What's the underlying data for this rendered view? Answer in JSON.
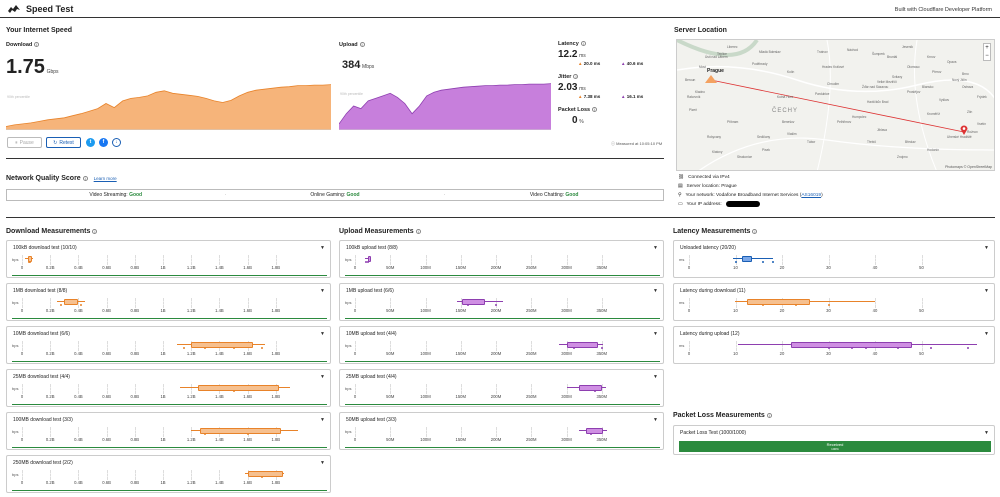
{
  "header": {
    "title": "Speed Test",
    "built_with": "Built with Cloudflare Developer Platform"
  },
  "internet_speed": {
    "title": "Your Internet Speed",
    "download": {
      "label": "Download",
      "value": "1.75",
      "unit": "Gbps",
      "percentile": "90th percentile"
    },
    "upload": {
      "label": "Upload",
      "value": "384",
      "unit": "Mbps",
      "percentile": "90th percentile"
    },
    "latency": {
      "label": "Latency",
      "value": "12.2",
      "unit": "ms",
      "down": "20.0 ms",
      "up": "40.6 ms"
    },
    "jitter": {
      "label": "Jitter",
      "value": "2.03",
      "unit": "ms",
      "down": "7.38 ms",
      "up": "16.1 ms"
    },
    "packet_loss": {
      "label": "Packet Loss",
      "value": "0",
      "unit": "%"
    },
    "measured_at": "Measured at 10:05:10 PM",
    "buttons": {
      "pause": "Pause",
      "retest": "Retest"
    }
  },
  "network_quality": {
    "title": "Network Quality Score",
    "learn_more": "Learn more",
    "items": [
      {
        "label": "Video Streaming:",
        "value": "Good"
      },
      {
        "label": "Online Gaming:",
        "value": "Good"
      },
      {
        "label": "Video Chatting:",
        "value": "Good"
      }
    ]
  },
  "server_location": {
    "title": "Server Location",
    "map": {
      "attribution": "Photomaps © OpenStreetMap",
      "zoom_in": "+",
      "zoom_out": "−",
      "labels": [
        "Prague",
        "ČECHY",
        "Liberec",
        "Ústí nad Labem",
        "Hradec Králové",
        "Plzeň",
        "Pardubice",
        "Kladno",
        "Mladá Boleslav",
        "Havlíčkův Brod",
        "Jihlava",
        "Tábor",
        "Písek",
        "Brno",
        "Znojmo",
        "Třebíč",
        "Kolín",
        "Poděbrady",
        "Chrudim",
        "Příbram",
        "Beroun",
        "Rakovník",
        "Teplice",
        "Most",
        "Kutná Hora",
        "Náchod",
        "Trutnov",
        "Svitavy",
        "Blansko",
        "Vyškov",
        "Zlín",
        "Přerov",
        "Olomouc",
        "Prostějov",
        "Uherské Hradiště",
        "Hodonín",
        "Břeclav",
        "Kroměříž",
        "Vsetín",
        "Frýdek",
        "Bruntál",
        "Šumperk",
        "Jeseník",
        "Krnov",
        "Opava",
        "Ostrava",
        "Nový Jičín",
        "Rožnov",
        "Žďár nad Sázavou",
        "Velké Meziříčí",
        "Pelhřimov",
        "Humpolec",
        "Benešov",
        "Vlašim",
        "Sedlčany",
        "Strakonice",
        "Klatovy",
        "Rokycany"
      ]
    },
    "info": {
      "connection": "Connected via IPv4",
      "server": "Server location: Prague",
      "network_prefix": "Your network: Vodafone Broadband Internet Services (",
      "asn": "AS16019",
      "network_suffix": ")",
      "ip_label": "Your IP address:"
    }
  },
  "download_measurements": {
    "title": "Download Measurements",
    "unit": "bps",
    "ticks": [
      "0",
      "0.2B",
      "0.4B",
      "0.6B",
      "0.8B",
      "1B",
      "1.2B",
      "1.4B",
      "1.6B",
      "1.8B"
    ],
    "tests": [
      {
        "title": "100kB download test (10/10)"
      },
      {
        "title": "1MB download test (8/8)"
      },
      {
        "title": "10MB download test (6/6)"
      },
      {
        "title": "25MB download test (4/4)"
      },
      {
        "title": "100MB download test (3/3)"
      },
      {
        "title": "250MB download test (2/2)"
      }
    ]
  },
  "upload_measurements": {
    "title": "Upload Measurements",
    "unit": "bps",
    "ticks": [
      "0",
      "50M",
      "100M",
      "150M",
      "200M",
      "250M",
      "300M",
      "350M"
    ],
    "tests": [
      {
        "title": "100kB upload test (8/8)"
      },
      {
        "title": "1MB upload test (6/6)"
      },
      {
        "title": "10MB upload test (4/4)"
      },
      {
        "title": "25MB upload test (4/4)"
      },
      {
        "title": "50MB upload test (3/3)"
      }
    ]
  },
  "latency_measurements": {
    "title": "Latency Measurements",
    "unit": "ms",
    "tests": [
      {
        "title": "Unloaded latency (20/20)",
        "ticks": [
          "0",
          "10",
          "20",
          "30",
          "40",
          "50"
        ]
      },
      {
        "title": "Latency during download (11)",
        "ticks": [
          "0",
          "10",
          "20",
          "30",
          "40",
          "50"
        ]
      },
      {
        "title": "Latency during upload (12)",
        "ticks": [
          "0",
          "10",
          "20",
          "30",
          "40",
          "50"
        ]
      }
    ]
  },
  "packet_loss_measurements": {
    "title": "Packet Loss Measurements",
    "test_title": "Packet Loss Test (1000/1000)",
    "bar_label": "Received",
    "bar_percent": "100%",
    "received_fraction": 1.0
  },
  "chart_data": [
    {
      "type": "area",
      "name": "download-speed-timeline",
      "ylabel": "",
      "points": [
        0.05,
        0.08,
        0.1,
        0.12,
        0.15,
        0.18,
        0.2,
        0.22,
        0.26,
        0.3,
        0.35,
        0.4,
        0.5,
        0.42,
        0.55,
        0.6,
        0.62,
        0.65,
        0.72,
        0.75,
        0.7,
        0.68,
        0.66,
        0.64,
        0.6,
        0.55,
        0.52,
        0.56,
        0.65,
        0.72,
        0.76,
        0.78,
        0.8,
        0.82,
        0.83,
        0.85,
        0.85,
        0.86,
        0.86,
        0.87
      ]
    },
    {
      "type": "area",
      "name": "upload-speed-timeline",
      "ylabel": "",
      "points": [
        0.1,
        0.3,
        0.45,
        0.4,
        0.55,
        0.6,
        0.65,
        0.7,
        0.62,
        0.5,
        0.3,
        0.45,
        0.65,
        0.72,
        0.76,
        0.78,
        0.8,
        0.82,
        0.83,
        0.84,
        0.85,
        0.85,
        0.86,
        0.86,
        0.87,
        0.87,
        0.88,
        0.88,
        0.88,
        0.89
      ]
    }
  ],
  "colors": {
    "download": "#f4a261",
    "download_dark": "#e8832a",
    "upload": "#b565d0",
    "upload_dark": "#8e3fb0",
    "good": "#2b8a3e",
    "link": "#1a5fb4"
  }
}
